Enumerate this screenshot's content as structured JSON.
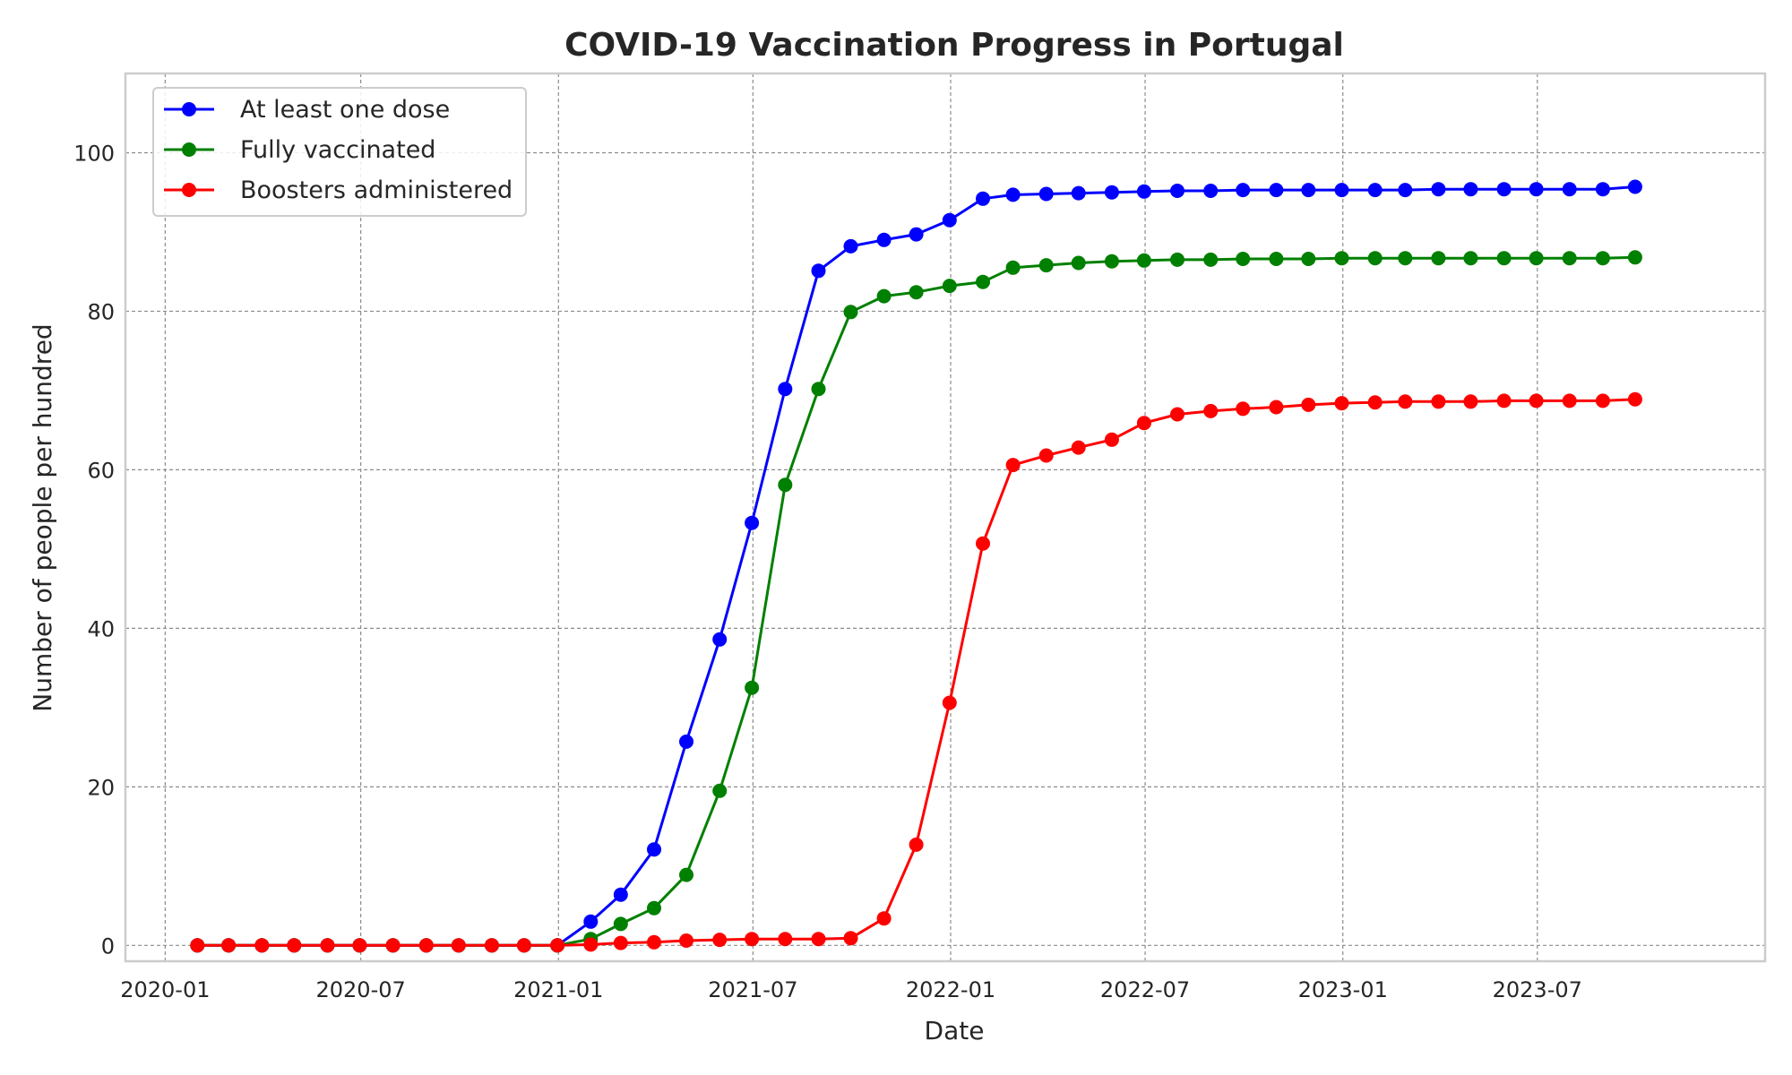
{
  "chart_data": {
    "type": "line",
    "title": "COVID-19 Vaccination Progress in Portugal",
    "xlabel": "Date",
    "ylabel": "Number of people per hundred",
    "xlim": [
      "2019-11-25",
      "2024-01-29"
    ],
    "ylim": [
      -2,
      110
    ],
    "x_ticks": [
      "2020-01",
      "2020-07",
      "2021-01",
      "2021-07",
      "2022-01",
      "2022-07",
      "2023-01",
      "2023-07"
    ],
    "y_ticks": [
      0,
      20,
      40,
      60,
      80,
      100
    ],
    "grid": true,
    "legend_position": "top-left",
    "x": [
      "2020-01-31",
      "2020-02-29",
      "2020-03-31",
      "2020-04-30",
      "2020-05-31",
      "2020-06-30",
      "2020-07-31",
      "2020-08-31",
      "2020-09-30",
      "2020-10-31",
      "2020-11-30",
      "2020-12-31",
      "2021-01-31",
      "2021-02-28",
      "2021-03-31",
      "2021-04-30",
      "2021-05-31",
      "2021-06-30",
      "2021-07-31",
      "2021-08-31",
      "2021-09-30",
      "2021-10-31",
      "2021-11-30",
      "2021-12-31",
      "2022-01-31",
      "2022-02-28",
      "2022-03-31",
      "2022-04-30",
      "2022-05-31",
      "2022-06-30",
      "2022-07-31",
      "2022-08-31",
      "2022-09-30",
      "2022-10-31",
      "2022-11-30",
      "2022-12-31",
      "2023-01-31",
      "2023-02-28",
      "2023-03-31",
      "2023-04-30",
      "2023-05-31",
      "2023-06-30",
      "2023-07-31",
      "2023-08-31",
      "2023-09-30"
    ],
    "series": [
      {
        "name": "At least one dose",
        "color": "#0000ff",
        "values": [
          0,
          0,
          0,
          0,
          0,
          0,
          0,
          0,
          0,
          0,
          0,
          0,
          3.0,
          6.4,
          12.1,
          25.7,
          38.6,
          53.3,
          70.2,
          85.1,
          88.2,
          89.0,
          89.7,
          91.5,
          94.2,
          94.7,
          94.8,
          94.9,
          95.0,
          95.1,
          95.2,
          95.2,
          95.3,
          95.3,
          95.3,
          95.3,
          95.3,
          95.3,
          95.4,
          95.4,
          95.4,
          95.4,
          95.4,
          95.4,
          95.7
        ]
      },
      {
        "name": "Fully vaccinated",
        "color": "#008000",
        "values": [
          0,
          0,
          0,
          0,
          0,
          0,
          0,
          0,
          0,
          0,
          0,
          0,
          0.8,
          2.7,
          4.7,
          8.9,
          19.5,
          32.5,
          58.1,
          70.2,
          79.9,
          81.9,
          82.4,
          83.2,
          83.7,
          85.5,
          85.8,
          86.1,
          86.3,
          86.4,
          86.5,
          86.5,
          86.6,
          86.6,
          86.6,
          86.7,
          86.7,
          86.7,
          86.7,
          86.7,
          86.7,
          86.7,
          86.7,
          86.7,
          86.8
        ]
      },
      {
        "name": "Boosters administered",
        "color": "#ff0000",
        "values": [
          0,
          0,
          0,
          0,
          0,
          0,
          0,
          0,
          0,
          0,
          0,
          0,
          0.1,
          0.3,
          0.4,
          0.6,
          0.7,
          0.8,
          0.8,
          0.8,
          0.9,
          3.4,
          12.7,
          30.6,
          50.7,
          60.6,
          61.8,
          62.8,
          63.8,
          65.9,
          67.0,
          67.4,
          67.7,
          67.9,
          68.2,
          68.4,
          68.5,
          68.6,
          68.6,
          68.6,
          68.7,
          68.7,
          68.7,
          68.7,
          68.9
        ]
      }
    ]
  }
}
